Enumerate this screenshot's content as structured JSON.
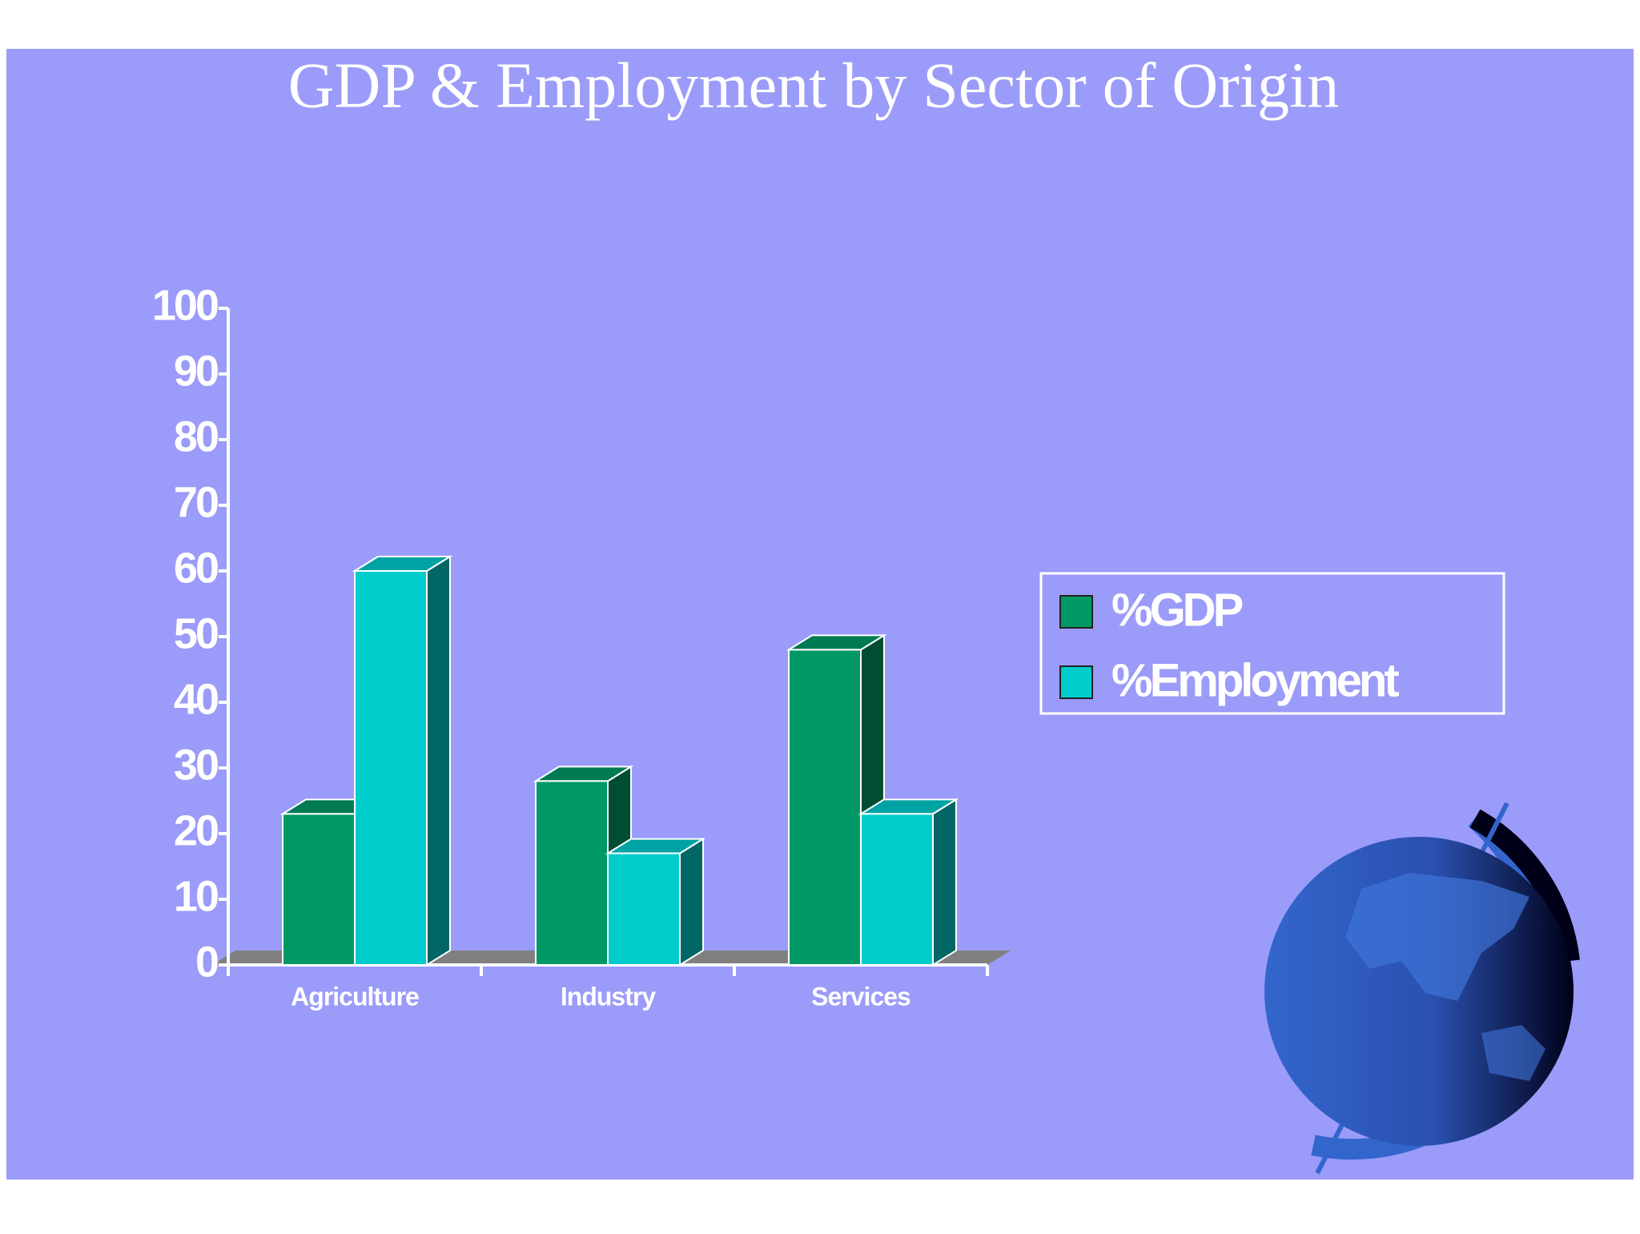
{
  "chart_data": {
    "type": "bar3d",
    "title": "GDP & Employment by Sector of Origin",
    "categories": [
      "Agriculture",
      "Industry",
      "Services"
    ],
    "series": [
      {
        "name": "%GDP",
        "color": "#009966",
        "values": [
          23,
          28,
          48
        ]
      },
      {
        "name": "%Employment",
        "color": "#00cccc",
        "values": [
          60,
          17,
          23
        ]
      }
    ],
    "ylim": [
      0,
      100
    ],
    "yticks": [
      0,
      10,
      20,
      30,
      40,
      50,
      60,
      70,
      80,
      90,
      100
    ],
    "legend": "right"
  }
}
